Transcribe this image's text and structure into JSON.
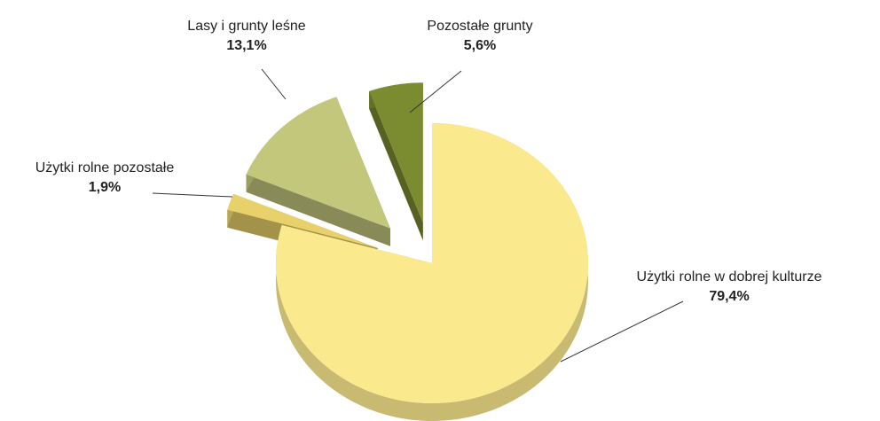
{
  "chart_data": {
    "type": "pie",
    "categories": [
      "Użytki rolne w dobrej kulturze",
      "Użytki rolne pozostałe",
      "Lasy i grunty leśne",
      "Pozostałe grunty"
    ],
    "values": [
      79.4,
      1.9,
      13.1,
      5.6
    ],
    "value_labels": [
      "79,4%",
      "1,9%",
      "13,1%",
      "5,6%"
    ],
    "colors": [
      "#fbe98e",
      "#e8d06a",
      "#c2c77c",
      "#7b8b30"
    ]
  }
}
